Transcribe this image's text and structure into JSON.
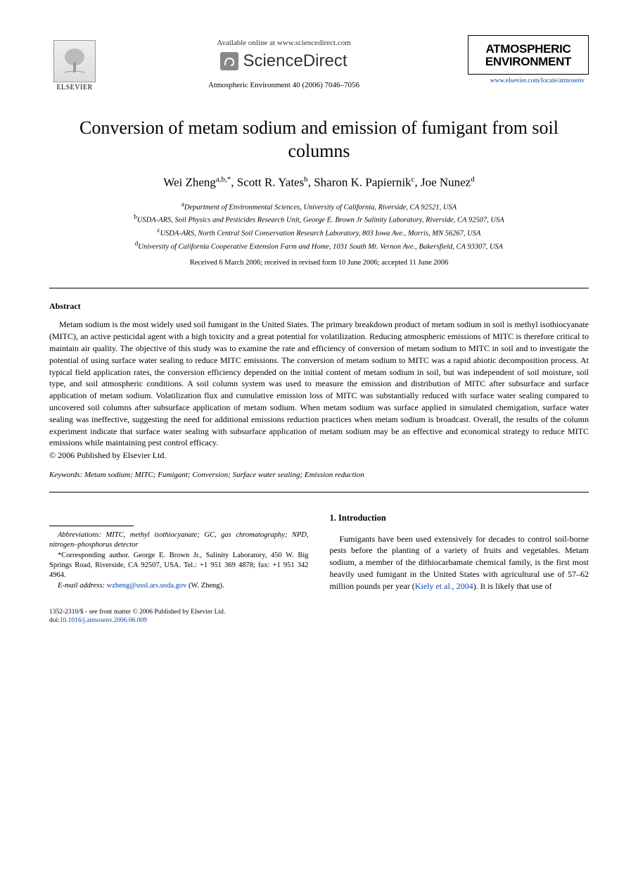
{
  "header": {
    "elsevier_label": "ELSEVIER",
    "available_online": "Available online at www.sciencedirect.com",
    "sciencedirect": "ScienceDirect",
    "journal_ref": "Atmospheric Environment 40 (2006) 7046–7056",
    "journal_name_line1": "ATMOSPHERIC",
    "journal_name_line2": "ENVIRONMENT",
    "journal_link": "www.elsevier.com/locate/atmosenv"
  },
  "title": "Conversion of metam sodium and emission of fumigant from soil columns",
  "authors_html": "Wei Zheng<sup>a,b,*</sup>, Scott R. Yates<sup>b</sup>, Sharon K. Papiernik<sup>c</sup>, Joe Nunez<sup>d</sup>",
  "affiliations": {
    "a": "Department of Environmental Sciences, University of California, Riverside, CA 92521, USA",
    "b": "USDA-ARS, Soil Physics and Pesticides Research Unit, George E. Brown Jr Salinity Laboratory, Riverside, CA 92507, USA",
    "c": "USDA-ARS, North Central Soil Conservation Research Laboratory, 803 Iowa Ave., Morris, MN 56267, USA",
    "d": "University of California Cooperative Extension Farm and Home, 1031 South Mt. Vernon Ave., Bakersfield, CA 93307, USA"
  },
  "dates": "Received 6 March 2006; received in revised form 10 June 2006; accepted 11 June 2006",
  "abstract": {
    "heading": "Abstract",
    "body": "Metam sodium is the most widely used soil fumigant in the United States. The primary breakdown product of metam sodium in soil is methyl isothiocyanate (MITC), an active pesticidal agent with a high toxicity and a great potential for volatilization. Reducing atmospheric emissions of MITC is therefore critical to maintain air quality. The objective of this study was to examine the rate and efficiency of conversion of metam sodium to MITC in soil and to investigate the potential of using surface water sealing to reduce MITC emissions. The conversion of metam sodium to MITC was a rapid abiotic decomposition process. At typical field application rates, the conversion efficiency depended on the initial content of metam sodium in soil, but was independent of soil moisture, soil type, and soil atmospheric conditions. A soil column system was used to measure the emission and distribution of MITC after subsurface and surface application of metam sodium. Volatilization flux and cumulative emission loss of MITC was substantially reduced with surface water sealing compared to uncovered soil columns after subsurface application of metam sodium. When metam sodium was surface applied in simulated chemigation, surface water sealing was ineffective, suggesting the need for additional emissions reduction practices when metam sodium is broadcast. Overall, the results of the column experiment indicate that surface water sealing with subsurface application of metam sodium may be an effective and economical strategy to reduce MITC emissions while maintaining pest control efficacy.",
    "copyright": "© 2006 Published by Elsevier Ltd."
  },
  "keywords": {
    "label": "Keywords:",
    "list": "Metam sodium; MITC; Fumigant; Conversion; Surface water sealing; Emission reduction"
  },
  "footnotes": {
    "abbreviations": "Abbreviations: MITC, methyl isothiocyanate; GC, gas chromatography; NPD, nitrogen–phosphorus detector",
    "corresponding": "*Corresponding author. George E. Brown Jr., Salinity Laboratory, 450 W. Big Springs Road, Riverside, CA 92507, USA. Tel.: +1 951 369 4878; fax: +1 951 342 4964.",
    "email_label": "E-mail address:",
    "email": "wzheng@ussl.ars.usda.gov",
    "email_name": "(W. Zheng)."
  },
  "intro": {
    "heading": "1. Introduction",
    "body_part1": "Fumigants have been used extensively for decades to control soil-borne pests before the planting of a variety of fruits and vegetables. Metam sodium, a member of the dithiocarbamate chemical family, is the first most heavily used fumigant in the United States with agricultural use of 57–62 million pounds per year (",
    "cite": "Kiely et al., 2004",
    "body_part2": "). It is likely that use of"
  },
  "bottom": {
    "issn_line": "1352-2310/$ - see front matter © 2006 Published by Elsevier Ltd.",
    "doi_label": "doi:",
    "doi": "10.1016/j.atmosenv.2006.06.009"
  },
  "colors": {
    "link": "#0645ad",
    "text": "#000000",
    "background": "#ffffff"
  }
}
